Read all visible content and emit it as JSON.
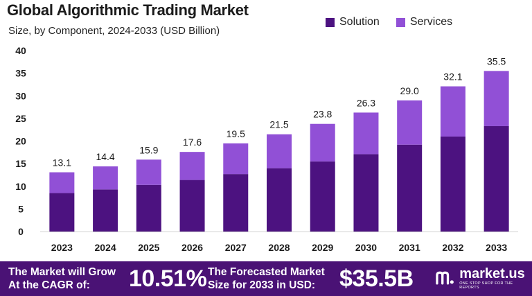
{
  "title": "Global Algorithmic Trading Market",
  "subtitle": "Size, by Component, 2024-2033 (USD Billion)",
  "colors": {
    "solution": "#4c1280",
    "services": "#9150d6",
    "footer": "#4a1275"
  },
  "chart_data": {
    "type": "bar",
    "stacked": true,
    "categories": [
      "2023",
      "2024",
      "2025",
      "2026",
      "2027",
      "2028",
      "2029",
      "2030",
      "2031",
      "2032",
      "2033"
    ],
    "series": [
      {
        "name": "Solution",
        "values": [
          8.5,
          9.3,
          10.3,
          11.4,
          12.7,
          14.0,
          15.5,
          17.1,
          19.2,
          21.0,
          23.3
        ]
      },
      {
        "name": "Services",
        "values": [
          4.6,
          5.1,
          5.6,
          6.2,
          6.8,
          7.5,
          8.3,
          9.2,
          9.8,
          11.1,
          12.2
        ]
      }
    ],
    "totals": [
      "13.1",
      "14.4",
      "15.9",
      "17.6",
      "19.5",
      "21.5",
      "23.8",
      "26.3",
      "29.0",
      "32.1",
      "35.5"
    ],
    "ylim": [
      0,
      40
    ],
    "yticks": [
      "0",
      "5",
      "10",
      "15",
      "20",
      "25",
      "30",
      "35",
      "40"
    ],
    "xlabel": "",
    "ylabel": "",
    "grid": false,
    "legend_position": "top-right"
  },
  "footer": {
    "cagr_label": [
      "The Market will Grow",
      "At the CAGR of:"
    ],
    "cagr_value": "10.51%",
    "forecast_label": [
      "The Forecasted Market",
      "Size for 2033 in USD:"
    ],
    "forecast_value": "$35.5B",
    "brand_name": "market.us",
    "brand_tagline": "ONE STOP SHOP FOR THE REPORTS"
  }
}
